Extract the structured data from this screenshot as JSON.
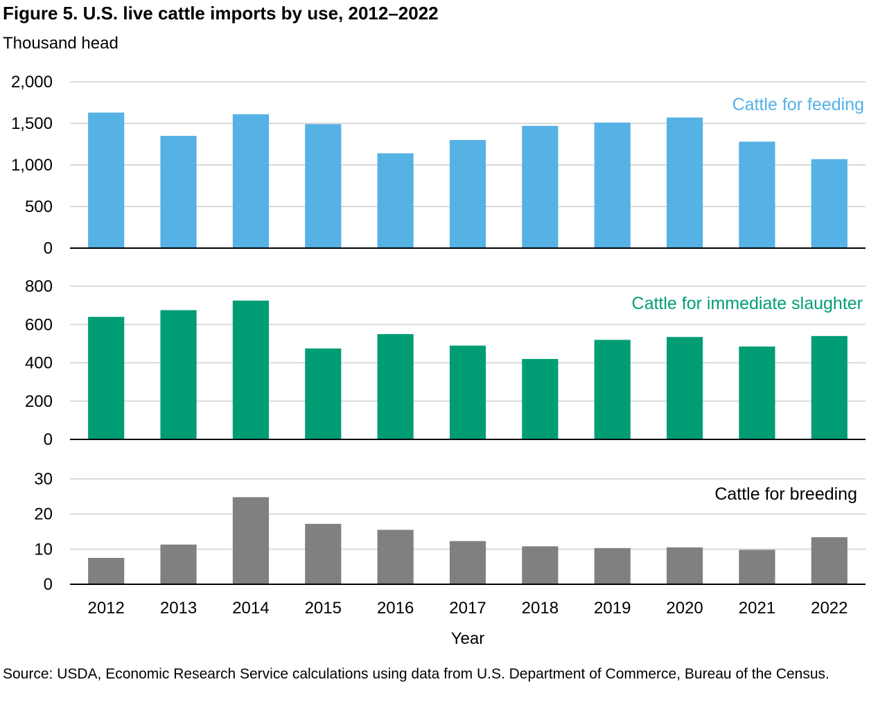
{
  "title": "Figure 5. U.S. live cattle imports by use, 2012–2022",
  "units_label": "Thousand head",
  "source": "Source: USDA, Economic Research Service calculations using data from U.S. Department of Commerce, Bureau of the Census.",
  "colors": {
    "feeding": "#56b1e5",
    "slaughter": "#009d75",
    "breeding": "#808080",
    "grid": "#d9d9d9",
    "axis": "#000000"
  },
  "chart_data": {
    "type": "bar",
    "xlabel": "Year",
    "categories": [
      "2012",
      "2013",
      "2014",
      "2015",
      "2016",
      "2017",
      "2018",
      "2019",
      "2020",
      "2021",
      "2022"
    ],
    "panels": [
      {
        "name": "Cattle for feeding",
        "color_key": "feeding",
        "ylim": [
          0,
          2000
        ],
        "yticks": [
          0,
          500,
          1000,
          1500,
          2000
        ],
        "ytick_labels": [
          "0",
          "500",
          "1,000",
          "1,500",
          "2,000"
        ],
        "values": [
          1630,
          1350,
          1610,
          1490,
          1140,
          1300,
          1470,
          1510,
          1570,
          1280,
          1070
        ]
      },
      {
        "name": "Cattle for immediate slaughter",
        "color_key": "slaughter",
        "ylim": [
          0,
          800
        ],
        "yticks": [
          0,
          200,
          400,
          600,
          800
        ],
        "ytick_labels": [
          "0",
          "200",
          "400",
          "600",
          "800"
        ],
        "values": [
          640,
          675,
          725,
          475,
          550,
          490,
          420,
          520,
          535,
          485,
          540
        ]
      },
      {
        "name": "Cattle for breeding",
        "color_key": "breeding",
        "ylim": [
          0,
          30
        ],
        "yticks": [
          0,
          10,
          20,
          30
        ],
        "ytick_labels": [
          "0",
          "10",
          "20",
          "30"
        ],
        "values": [
          7.5,
          11.3,
          24.8,
          17.2,
          15.5,
          12.3,
          10.8,
          10.3,
          10.5,
          9.8,
          13.4
        ]
      }
    ],
    "grid": true
  }
}
